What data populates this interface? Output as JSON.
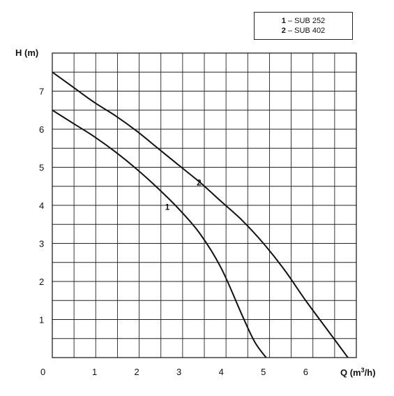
{
  "chart_data": {
    "type": "line",
    "ylabel": "H (m)",
    "xlabel_main": "Q (m",
    "xlabel_sup": "3",
    "xlabel_tail": "/h)",
    "origin_label": "0",
    "xlim": [
      0,
      7.2
    ],
    "ylim": [
      0,
      8
    ],
    "x_ticks": [
      1,
      2,
      3,
      4,
      5,
      6
    ],
    "y_ticks": [
      1,
      2,
      3,
      4,
      5,
      6,
      7
    ],
    "grid": true,
    "legend_position": "top-right",
    "legend": [
      {
        "key": "1",
        "text": " – SUB 252"
      },
      {
        "key": "2",
        "text": " – SUB 402"
      }
    ],
    "series": [
      {
        "name": "1",
        "x": [
          0,
          0.5,
          1,
          1.5,
          2,
          2.5,
          3,
          3.5,
          4,
          4.5,
          4.8,
          5.1
        ],
        "y": [
          6.5,
          6.15,
          5.8,
          5.4,
          4.95,
          4.45,
          3.9,
          3.25,
          2.35,
          1.1,
          0.4,
          -0.05
        ]
      },
      {
        "name": "2",
        "x": [
          0,
          0.5,
          1,
          1.5,
          2,
          2.5,
          3,
          3.5,
          4,
          4.5,
          5,
          5.5,
          6,
          6.5,
          7.0
        ],
        "y": [
          7.5,
          7.1,
          6.7,
          6.35,
          5.95,
          5.5,
          5.05,
          4.6,
          4.1,
          3.6,
          3.0,
          2.3,
          1.5,
          0.75,
          0.0
        ]
      }
    ],
    "curve_labels": [
      {
        "text": "1",
        "x": 2.9,
        "y": 3.95
      },
      {
        "text": "2",
        "x": 3.65,
        "y": 4.6
      }
    ]
  }
}
